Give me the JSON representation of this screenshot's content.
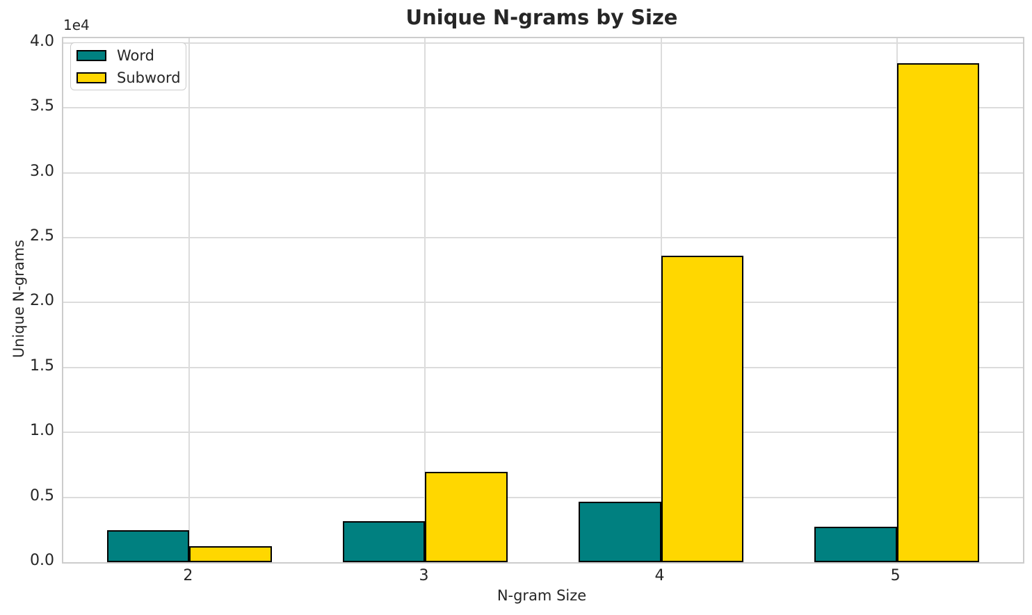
{
  "title": "Unique N-grams by Size",
  "axes": {
    "xlabel": "N-gram Size",
    "ylabel": "Unique N-grams",
    "offset_text": "1e4",
    "ytick_labels": [
      "0.0",
      "0.5",
      "1.0",
      "1.5",
      "2.0",
      "2.5",
      "3.0",
      "3.5",
      "4.0"
    ],
    "xtick_labels": [
      "2",
      "3",
      "4",
      "5"
    ]
  },
  "legend": {
    "items": [
      {
        "label": "Word",
        "color": "#008080"
      },
      {
        "label": "Subword",
        "color": "#FFD700"
      }
    ]
  },
  "colors": {
    "word_fill": "#008080",
    "subword_fill": "#FFD700",
    "bar_edge": "#000000",
    "grid": "#dcdcdc",
    "spine": "#cccccc",
    "text": "#262626",
    "background": "#ffffff"
  },
  "chart_data": {
    "type": "bar",
    "title": "Unique N-grams by Size",
    "xlabel": "N-gram Size",
    "ylabel": "Unique N-grams",
    "categories": [
      "2",
      "3",
      "4",
      "5"
    ],
    "series": [
      {
        "name": "Word",
        "color": "#008080",
        "values": [
          2450,
          3170,
          4640,
          2750
        ]
      },
      {
        "name": "Subword",
        "color": "#FFD700",
        "values": [
          1250,
          6960,
          23600,
          38450
        ]
      }
    ],
    "ylim": [
      0,
      40370
    ],
    "yticks": [
      0,
      5000,
      10000,
      15000,
      20000,
      25000,
      30000,
      35000,
      40000
    ],
    "y_offset_factor": "1e4",
    "grid": true,
    "legend_position": "upper left",
    "bar_width": 0.35
  }
}
